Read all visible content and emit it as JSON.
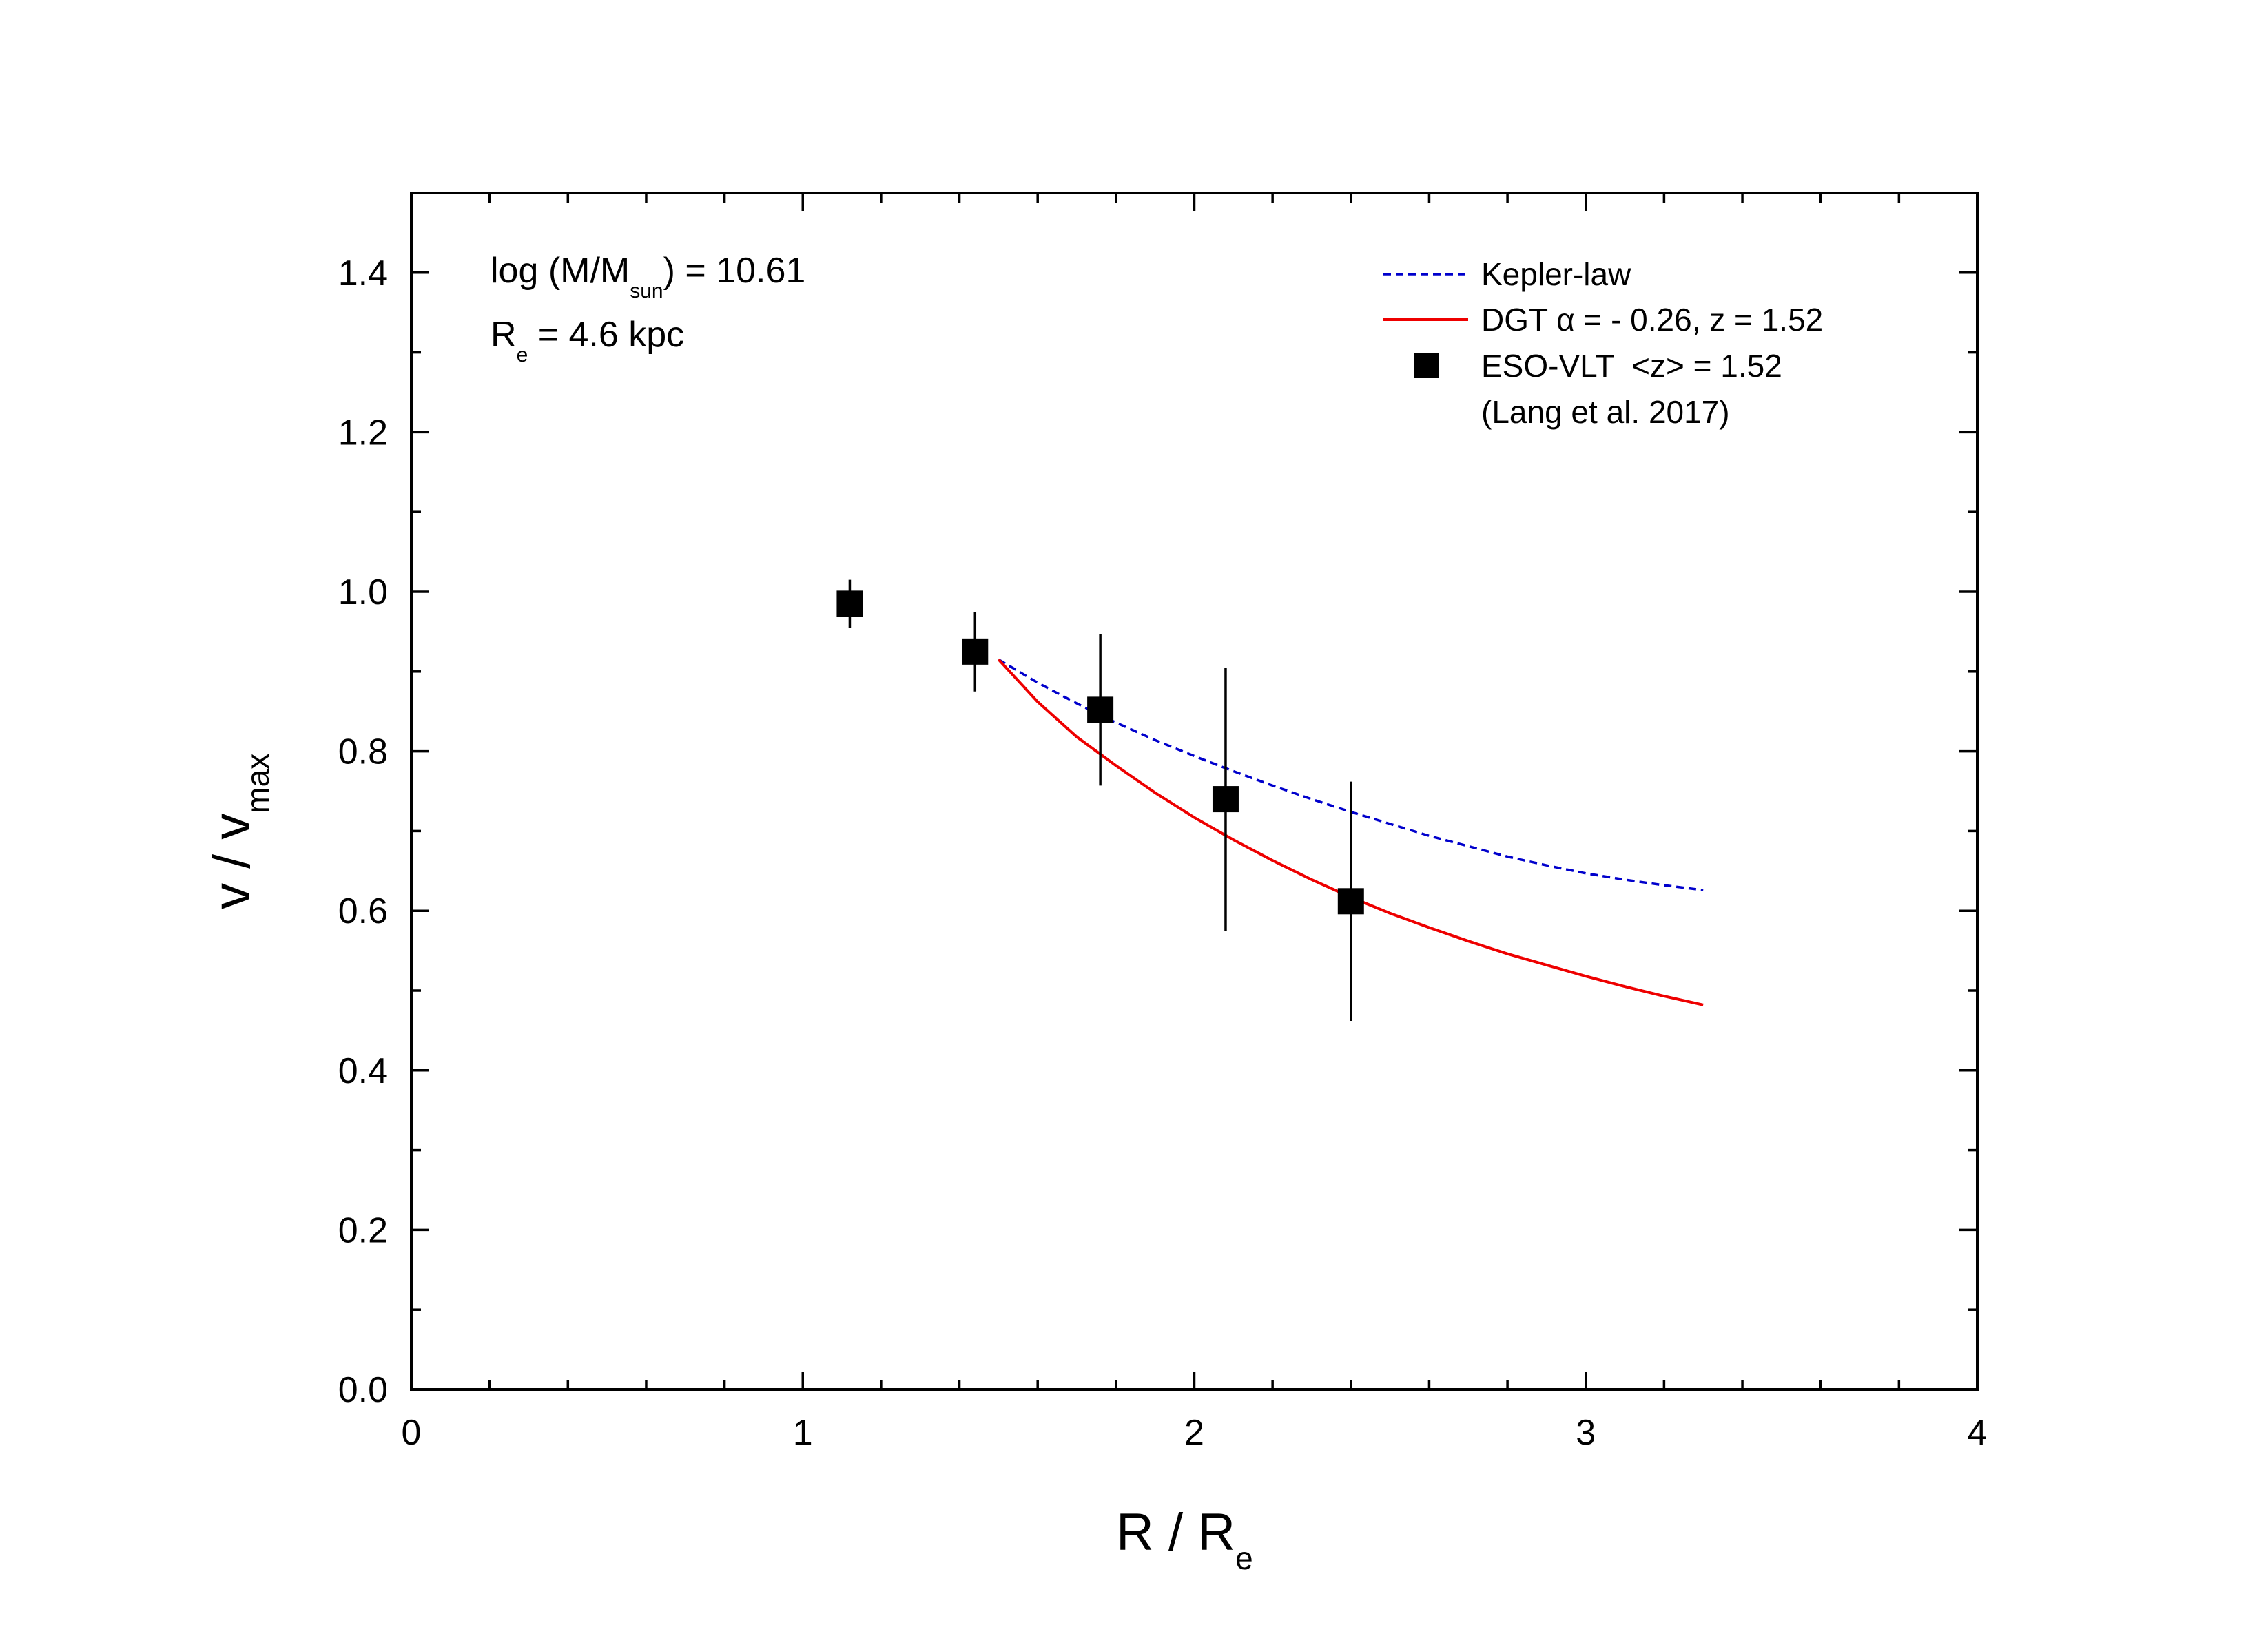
{
  "chart_data": {
    "type": "scatter",
    "title": "",
    "xlabel": {
      "main": "R / R",
      "sub": "e"
    },
    "ylabel": {
      "main": "v / v",
      "sub": "max"
    },
    "xlim": [
      0,
      4
    ],
    "ylim": [
      0,
      1.5
    ],
    "x_ticks": [
      0,
      1,
      2,
      3,
      4
    ],
    "x_tick_labels": [
      "0",
      "1",
      "2",
      "3",
      "4"
    ],
    "y_ticks": [
      0.0,
      0.2,
      0.4,
      0.6,
      0.8,
      1.0,
      1.2,
      1.4
    ],
    "y_tick_labels": [
      "0.0",
      "0.2",
      "0.4",
      "0.6",
      "0.8",
      "1.0",
      "1.2",
      "1.4"
    ],
    "grid": false,
    "annotations": [
      {
        "pre": "log (M/M",
        "sub": "sun",
        "post": ") = 10.61"
      },
      {
        "pre": "R",
        "sub": "e",
        "post": " = 4.6 kpc"
      }
    ],
    "legend_position": "top-right",
    "series": [
      {
        "name": "Kepler-law",
        "kind": "line",
        "style": "dashed",
        "color": "#0000cc",
        "x": [
          1.5,
          1.6,
          1.7,
          1.8,
          1.9,
          2.0,
          2.1,
          2.2,
          2.3,
          2.4,
          2.5,
          2.6,
          2.7,
          2.8,
          2.9,
          3.0,
          3.1,
          3.2,
          3.3
        ],
        "y": [
          0.915,
          0.886,
          0.86,
          0.836,
          0.814,
          0.794,
          0.775,
          0.757,
          0.74,
          0.724,
          0.709,
          0.694,
          0.681,
          0.668,
          0.657,
          0.647,
          0.639,
          0.632,
          0.626
        ]
      },
      {
        "name": "DGT α = - 0.26, z = 1.52",
        "legend_parts": [
          "DGT ",
          "α",
          " = - 0.26, z = 1.52"
        ],
        "kind": "line",
        "style": "solid",
        "color": "#ee0000",
        "x": [
          1.5,
          1.6,
          1.7,
          1.8,
          1.9,
          2.0,
          2.1,
          2.2,
          2.3,
          2.4,
          2.5,
          2.6,
          2.7,
          2.8,
          2.9,
          3.0,
          3.1,
          3.2,
          3.3
        ],
        "y": [
          0.915,
          0.862,
          0.818,
          0.782,
          0.748,
          0.717,
          0.689,
          0.663,
          0.639,
          0.617,
          0.597,
          0.579,
          0.562,
          0.546,
          0.532,
          0.518,
          0.505,
          0.493,
          0.482
        ]
      },
      {
        "name": "ESO-VLT  <z> = 1.52",
        "legend_note": "(Lang et al. 2017)",
        "kind": "points",
        "marker": "square",
        "color": "#000000",
        "x": [
          1.12,
          1.44,
          1.76,
          2.08,
          2.4
        ],
        "y": [
          0.985,
          0.925,
          0.852,
          0.74,
          0.612
        ],
        "yerr": [
          0.03,
          0.05,
          0.095,
          0.165,
          0.15
        ]
      }
    ]
  }
}
